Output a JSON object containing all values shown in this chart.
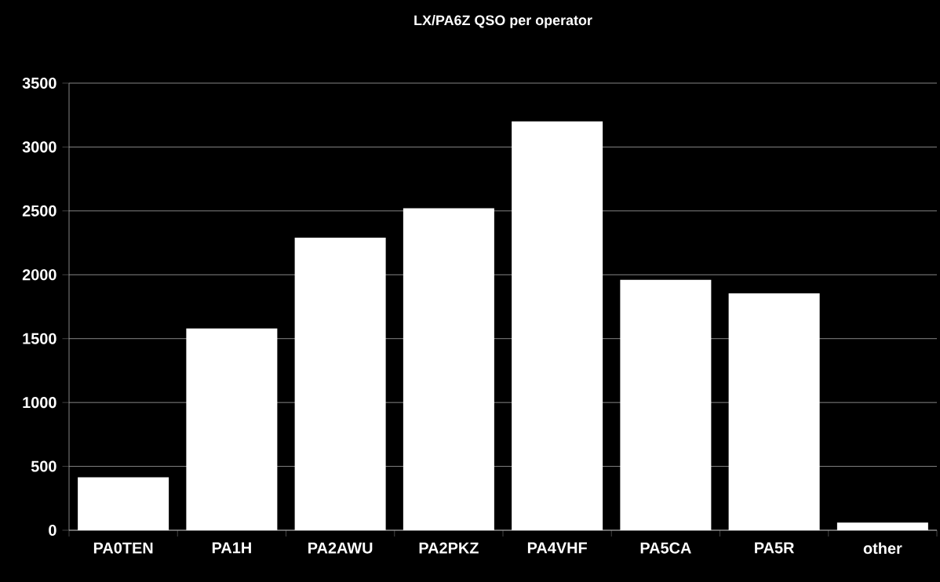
{
  "chart_data": {
    "type": "bar",
    "title": "LX/PA6Z QSO per operator",
    "categories": [
      "PA0TEN",
      "PA1H",
      "PA2AWU",
      "PA2PKZ",
      "PA4VHF",
      "PA5CA",
      "PA5R",
      "other"
    ],
    "values": [
      415,
      1580,
      2290,
      2520,
      3200,
      1960,
      1855,
      60
    ],
    "color": "#ffffff",
    "ylim": [
      0,
      3500
    ],
    "yticks": [
      0,
      500,
      1000,
      1500,
      2000,
      2500,
      3000,
      3500
    ],
    "grid": "y"
  }
}
